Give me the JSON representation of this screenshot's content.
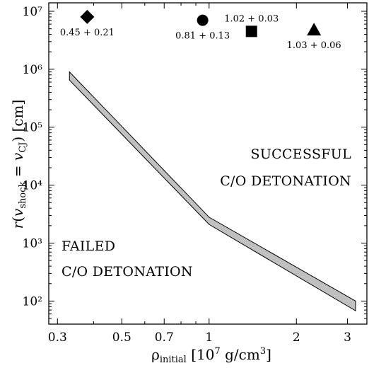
{
  "chart_data": {
    "type": "area",
    "title": "",
    "xlabel": "ρ_initial [10^7 g/cm^3]",
    "ylabel": "r(v_shock = v_CJ) [cm]",
    "xscale": "log",
    "yscale": "log",
    "xlim": [
      0.28,
      3.5
    ],
    "ylim": [
      40,
      14000000
    ],
    "grid": false,
    "legend": "none",
    "x_ticks": [
      0.3,
      0.5,
      0.7,
      1,
      2,
      3
    ],
    "x_tick_labels": [
      "0.3",
      "0.5",
      "0.7",
      "1",
      "2",
      "3"
    ],
    "y_ticks": [
      100,
      1000,
      10000,
      100000,
      1000000,
      10000000
    ],
    "y_tick_labels": [
      "10²",
      "10³",
      "10⁴",
      "10⁵",
      "10⁶",
      "10⁷"
    ],
    "band": {
      "fill_color": "#c0c0c0",
      "edge_color": "#000000",
      "x": [
        0.33,
        1.0,
        3.2
      ],
      "upper": [
        900000,
        2800,
        100
      ],
      "lower": [
        650000,
        2100,
        68
      ]
    },
    "markers": [
      {
        "shape": "diamond",
        "x": 0.38,
        "y": 8000000,
        "label": "0.45 + 0.21",
        "label_position": "below"
      },
      {
        "shape": "circle",
        "x": 0.95,
        "y": 7000000,
        "label": "0.81 + 0.13",
        "label_position": "below"
      },
      {
        "shape": "square",
        "x": 1.4,
        "y": 4500000,
        "label": "1.02 + 0.03",
        "label_position": "above"
      },
      {
        "shape": "triangle",
        "x": 2.3,
        "y": 4800000,
        "label": "1.03 + 0.06",
        "label_position": "below"
      }
    ],
    "annotations": [
      {
        "lines": [
          "SUCCESSFUL",
          "C/O DETONATION"
        ],
        "align": "right",
        "place": "right-middle"
      },
      {
        "lines": [
          "FAILED",
          "C/O DETONATION"
        ],
        "align": "left",
        "place": "bottom-left"
      }
    ]
  }
}
